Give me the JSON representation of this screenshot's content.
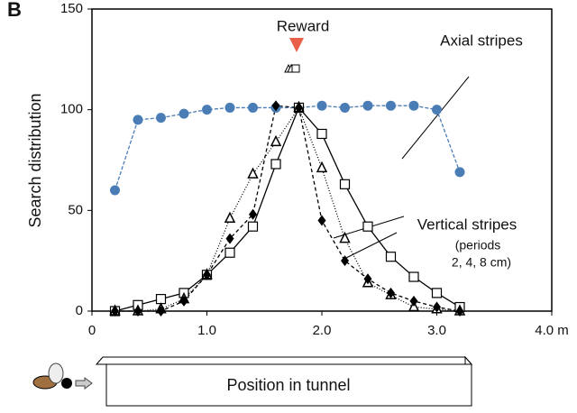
{
  "chart_data": {
    "type": "line",
    "panel": "B",
    "ylabel": "Search distribution",
    "x": [
      0.2,
      0.4,
      0.6,
      0.8,
      1.0,
      1.2,
      1.4,
      1.6,
      1.8,
      2.0,
      2.2,
      2.4,
      2.6,
      2.8,
      3.0,
      3.2
    ],
    "series": [
      {
        "name": "Axial stripes",
        "color": "#4a7db5",
        "marker": "circle",
        "dash": "4,2",
        "values": [
          60,
          95,
          96,
          98,
          100,
          101,
          101,
          101,
          101,
          102,
          101,
          102,
          102,
          102,
          100,
          69
        ]
      },
      {
        "color": "#000000",
        "marker": "square",
        "dash": "none",
        "values": [
          0,
          3,
          6,
          9,
          18,
          29,
          42,
          73,
          101,
          88,
          63,
          42,
          27,
          17,
          9,
          2
        ]
      },
      {
        "color": "#000000",
        "marker": "triangle",
        "dash": "1,2",
        "values": [
          0,
          0,
          1,
          6,
          18,
          46,
          68,
          84,
          101,
          71,
          36,
          14,
          8,
          2,
          1,
          0
        ]
      },
      {
        "color": "#000000",
        "marker": "diamond",
        "dash": "4,3",
        "values": [
          0,
          0,
          0,
          5,
          18,
          36,
          48,
          102,
          101,
          45,
          25,
          16,
          9,
          5,
          2,
          0
        ]
      }
    ],
    "xlim": [
      0,
      4
    ],
    "xticks": [
      0,
      {
        "value": 1,
        "label": "1.0"
      },
      {
        "value": 2,
        "label": "2.0"
      },
      {
        "value": 3,
        "label": "3.0"
      },
      {
        "value": 4,
        "label": "4.0 m"
      }
    ],
    "ylim": [
      0,
      150
    ],
    "yticks": [
      0,
      50,
      100,
      150
    ],
    "reward": "Reward",
    "annotations": [
      "Axial stripes",
      "Vertical stripes",
      "(periods",
      "2, 4, 8 cm)"
    ],
    "tunnel_label": "Position in tunnel"
  }
}
